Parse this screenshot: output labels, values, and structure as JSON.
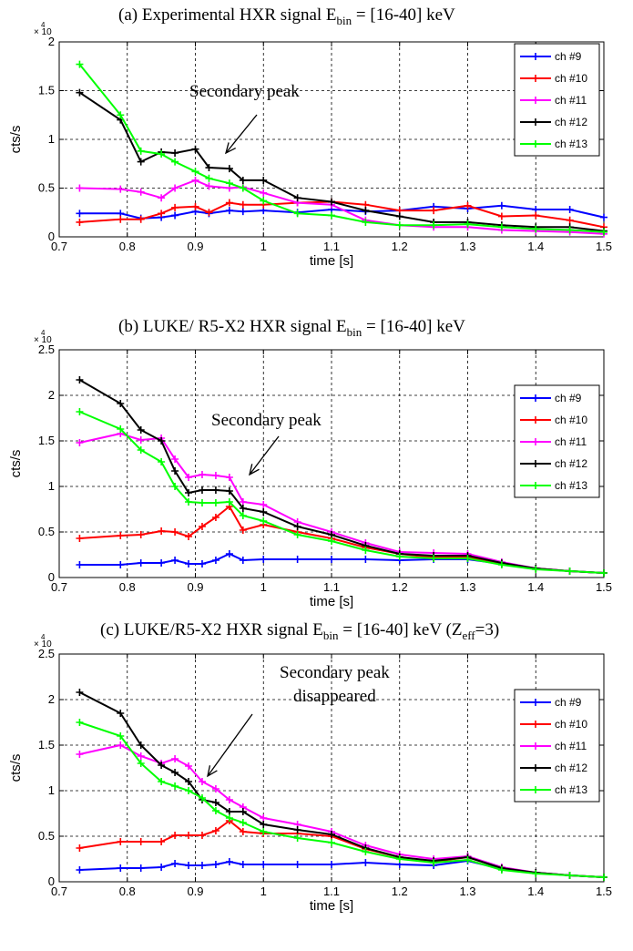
{
  "chart_data": [
    {
      "type": "line",
      "title": {
        "main": "(a) Experimental HXR signal E",
        "sub": "bin",
        "rest": " = [16-40] keV"
      },
      "xlabel": "time [s]",
      "ylabel": "cts/s",
      "multiplier": {
        "base": "× 10",
        "exp": "4"
      },
      "xlim": [
        0.7,
        1.5
      ],
      "ylim": [
        0,
        2
      ],
      "xticks": [
        "0.7",
        "0.8",
        "0.9",
        "1",
        "1.1",
        "1.2",
        "1.3",
        "1.4",
        "1.5"
      ],
      "yticks": [
        "0",
        "0.5",
        "1",
        "1.5",
        "2"
      ],
      "grid": true,
      "legend_position": "top-right",
      "annotations": [
        "Secondary peak"
      ],
      "series": [
        {
          "name": "ch #9",
          "color": "#0000ff",
          "x": [
            0.73,
            0.79,
            0.82,
            0.85,
            0.87,
            0.9,
            0.92,
            0.95,
            0.97,
            1.0,
            1.05,
            1.1,
            1.15,
            1.2,
            1.25,
            1.3,
            1.35,
            1.4,
            1.45,
            1.5
          ],
          "y": [
            0.24,
            0.24,
            0.19,
            0.2,
            0.22,
            0.26,
            0.24,
            0.27,
            0.26,
            0.27,
            0.25,
            0.28,
            0.26,
            0.27,
            0.31,
            0.29,
            0.32,
            0.28,
            0.28,
            0.2
          ]
        },
        {
          "name": "ch #10",
          "color": "#ff0000",
          "x": [
            0.73,
            0.79,
            0.82,
            0.85,
            0.87,
            0.9,
            0.92,
            0.95,
            0.97,
            1.0,
            1.05,
            1.1,
            1.15,
            1.2,
            1.25,
            1.3,
            1.35,
            1.4,
            1.45,
            1.5
          ],
          "y": [
            0.15,
            0.18,
            0.18,
            0.24,
            0.3,
            0.31,
            0.25,
            0.35,
            0.33,
            0.33,
            0.35,
            0.36,
            0.33,
            0.27,
            0.27,
            0.32,
            0.21,
            0.22,
            0.17,
            0.1
          ]
        },
        {
          "name": "ch #11",
          "color": "#ff00ff",
          "x": [
            0.73,
            0.79,
            0.82,
            0.85,
            0.87,
            0.9,
            0.92,
            0.95,
            0.97,
            1.0,
            1.05,
            1.1,
            1.15,
            1.2,
            1.25,
            1.3,
            1.35,
            1.4,
            1.45,
            1.5
          ],
          "y": [
            0.5,
            0.49,
            0.46,
            0.4,
            0.5,
            0.58,
            0.52,
            0.5,
            0.51,
            0.45,
            0.35,
            0.33,
            0.17,
            0.12,
            0.1,
            0.1,
            0.07,
            0.06,
            0.05,
            0.03
          ]
        },
        {
          "name": "ch #12",
          "color": "#000000",
          "x": [
            0.73,
            0.79,
            0.82,
            0.85,
            0.87,
            0.9,
            0.92,
            0.95,
            0.97,
            1.0,
            1.05,
            1.1,
            1.15,
            1.2,
            1.25,
            1.3,
            1.35,
            1.4,
            1.45,
            1.5
          ],
          "y": [
            1.48,
            1.2,
            0.77,
            0.87,
            0.86,
            0.9,
            0.71,
            0.7,
            0.58,
            0.58,
            0.4,
            0.36,
            0.27,
            0.21,
            0.15,
            0.15,
            0.12,
            0.1,
            0.1,
            0.06
          ]
        },
        {
          "name": "ch #13",
          "color": "#00ff00",
          "x": [
            0.73,
            0.79,
            0.82,
            0.85,
            0.87,
            0.9,
            0.92,
            0.95,
            0.97,
            1.0,
            1.05,
            1.1,
            1.15,
            1.2,
            1.25,
            1.3,
            1.35,
            1.4,
            1.45,
            1.5
          ],
          "y": [
            1.77,
            1.25,
            0.88,
            0.85,
            0.77,
            0.67,
            0.6,
            0.55,
            0.5,
            0.37,
            0.24,
            0.22,
            0.15,
            0.12,
            0.12,
            0.13,
            0.1,
            0.08,
            0.07,
            0.05
          ]
        }
      ]
    },
    {
      "type": "line",
      "title": {
        "main": "(b) LUKE/ R5-X2 HXR signal E",
        "sub": "bin",
        "rest": " = [16-40] keV"
      },
      "xlabel": "time [s]",
      "ylabel": "cts/s",
      "multiplier": {
        "base": "× 10",
        "exp": "4"
      },
      "xlim": [
        0.7,
        1.5
      ],
      "ylim": [
        0,
        2.5
      ],
      "xticks": [
        "0.7",
        "0.8",
        "0.9",
        "1",
        "1.1",
        "1.2",
        "1.3",
        "1.4",
        "1.5"
      ],
      "yticks": [
        "0",
        "0.5",
        "1",
        "1.5",
        "2",
        "2.5"
      ],
      "grid": true,
      "legend_position": "top-right",
      "annotations": [
        "Secondary peak"
      ],
      "series": [
        {
          "name": "ch #9",
          "color": "#0000ff",
          "x": [
            0.73,
            0.79,
            0.82,
            0.85,
            0.87,
            0.89,
            0.91,
            0.93,
            0.95,
            0.97,
            1.0,
            1.05,
            1.1,
            1.15,
            1.2,
            1.25,
            1.3,
            1.35,
            1.4,
            1.45,
            1.5
          ],
          "y": [
            0.14,
            0.14,
            0.16,
            0.16,
            0.19,
            0.15,
            0.15,
            0.19,
            0.26,
            0.19,
            0.2,
            0.2,
            0.2,
            0.2,
            0.19,
            0.2,
            0.2,
            0.15,
            0.1,
            0.07,
            0.05
          ]
        },
        {
          "name": "ch #10",
          "color": "#ff0000",
          "x": [
            0.73,
            0.79,
            0.82,
            0.85,
            0.87,
            0.89,
            0.91,
            0.93,
            0.95,
            0.97,
            1.0,
            1.05,
            1.1,
            1.15,
            1.2,
            1.25,
            1.3,
            1.35,
            1.4,
            1.45,
            1.5
          ],
          "y": [
            0.43,
            0.46,
            0.47,
            0.51,
            0.5,
            0.45,
            0.56,
            0.66,
            0.78,
            0.52,
            0.58,
            0.5,
            0.43,
            0.33,
            0.26,
            0.22,
            0.22,
            0.15,
            0.1,
            0.07,
            0.05
          ]
        },
        {
          "name": "ch #11",
          "color": "#ff00ff",
          "x": [
            0.73,
            0.79,
            0.82,
            0.85,
            0.87,
            0.89,
            0.91,
            0.93,
            0.95,
            0.97,
            1.0,
            1.05,
            1.1,
            1.15,
            1.2,
            1.25,
            1.3,
            1.35,
            1.4,
            1.45,
            1.5
          ],
          "y": [
            1.48,
            1.58,
            1.51,
            1.53,
            1.3,
            1.1,
            1.13,
            1.12,
            1.1,
            0.83,
            0.8,
            0.61,
            0.5,
            0.38,
            0.28,
            0.27,
            0.26,
            0.17,
            0.1,
            0.07,
            0.05
          ]
        },
        {
          "name": "ch #12",
          "color": "#000000",
          "x": [
            0.73,
            0.79,
            0.82,
            0.85,
            0.87,
            0.89,
            0.91,
            0.93,
            0.95,
            0.97,
            1.0,
            1.05,
            1.1,
            1.15,
            1.2,
            1.25,
            1.3,
            1.35,
            1.4,
            1.45,
            1.5
          ],
          "y": [
            2.17,
            1.91,
            1.62,
            1.5,
            1.17,
            0.93,
            0.96,
            0.96,
            0.95,
            0.76,
            0.72,
            0.56,
            0.47,
            0.35,
            0.26,
            0.24,
            0.24,
            0.16,
            0.1,
            0.07,
            0.05
          ]
        },
        {
          "name": "ch #13",
          "color": "#00ff00",
          "x": [
            0.73,
            0.79,
            0.82,
            0.85,
            0.87,
            0.89,
            0.91,
            0.93,
            0.95,
            0.97,
            1.0,
            1.05,
            1.1,
            1.15,
            1.2,
            1.25,
            1.3,
            1.35,
            1.4,
            1.45,
            1.5
          ],
          "y": [
            1.82,
            1.63,
            1.4,
            1.27,
            1.0,
            0.83,
            0.82,
            0.82,
            0.83,
            0.68,
            0.62,
            0.47,
            0.4,
            0.3,
            0.23,
            0.21,
            0.21,
            0.14,
            0.09,
            0.07,
            0.05
          ]
        }
      ]
    },
    {
      "type": "line",
      "title": {
        "main": "(c) LUKE/R5-X2 HXR signal E",
        "sub": "bin",
        "rest": " = [16-40] keV (Z",
        "sub2": "eff",
        "rest2": "=3)"
      },
      "xlabel": "time [s]",
      "ylabel": "cts/s",
      "multiplier": {
        "base": "× 10",
        "exp": "4"
      },
      "xlim": [
        0.7,
        1.5
      ],
      "ylim": [
        0,
        2.5
      ],
      "xticks": [
        "0.7",
        "0.8",
        "0.9",
        "1",
        "1.1",
        "1.2",
        "1.3",
        "1.4",
        "1.5"
      ],
      "yticks": [
        "0",
        "0.5",
        "1",
        "1.5",
        "2",
        "2.5"
      ],
      "grid": true,
      "legend_position": "top-right",
      "annotations": [
        "Secondary peak",
        "disappeared"
      ],
      "series": [
        {
          "name": "ch #9",
          "color": "#0000ff",
          "x": [
            0.73,
            0.79,
            0.82,
            0.85,
            0.87,
            0.89,
            0.91,
            0.93,
            0.95,
            0.97,
            1.0,
            1.05,
            1.1,
            1.15,
            1.2,
            1.25,
            1.3,
            1.35,
            1.4,
            1.45,
            1.5
          ],
          "y": [
            0.13,
            0.15,
            0.15,
            0.16,
            0.2,
            0.18,
            0.18,
            0.19,
            0.22,
            0.19,
            0.19,
            0.19,
            0.19,
            0.21,
            0.19,
            0.18,
            0.23,
            0.14,
            0.1,
            0.07,
            0.05
          ]
        },
        {
          "name": "ch #10",
          "color": "#ff0000",
          "x": [
            0.73,
            0.79,
            0.82,
            0.85,
            0.87,
            0.89,
            0.91,
            0.93,
            0.95,
            0.97,
            1.0,
            1.05,
            1.1,
            1.15,
            1.2,
            1.25,
            1.3,
            1.35,
            1.4,
            1.45,
            1.5
          ],
          "y": [
            0.37,
            0.44,
            0.44,
            0.44,
            0.51,
            0.51,
            0.51,
            0.56,
            0.67,
            0.55,
            0.53,
            0.53,
            0.5,
            0.36,
            0.27,
            0.22,
            0.27,
            0.15,
            0.1,
            0.07,
            0.05
          ]
        },
        {
          "name": "ch #11",
          "color": "#ff00ff",
          "x": [
            0.73,
            0.79,
            0.82,
            0.85,
            0.87,
            0.89,
            0.91,
            0.93,
            0.95,
            0.97,
            1.0,
            1.05,
            1.1,
            1.15,
            1.2,
            1.25,
            1.3,
            1.35,
            1.4,
            1.45,
            1.5
          ],
          "y": [
            1.4,
            1.5,
            1.38,
            1.3,
            1.35,
            1.27,
            1.1,
            1.02,
            0.9,
            0.82,
            0.7,
            0.63,
            0.55,
            0.4,
            0.3,
            0.25,
            0.28,
            0.16,
            0.1,
            0.07,
            0.05
          ]
        },
        {
          "name": "ch #12",
          "color": "#000000",
          "x": [
            0.73,
            0.79,
            0.82,
            0.85,
            0.87,
            0.89,
            0.91,
            0.93,
            0.95,
            0.97,
            1.0,
            1.05,
            1.1,
            1.15,
            1.2,
            1.25,
            1.3,
            1.35,
            1.4,
            1.45,
            1.5
          ],
          "y": [
            2.08,
            1.85,
            1.5,
            1.28,
            1.2,
            1.1,
            0.9,
            0.87,
            0.77,
            0.77,
            0.63,
            0.57,
            0.52,
            0.37,
            0.27,
            0.23,
            0.27,
            0.15,
            0.1,
            0.07,
            0.05
          ]
        },
        {
          "name": "ch #13",
          "color": "#00ff00",
          "x": [
            0.73,
            0.79,
            0.82,
            0.85,
            0.87,
            0.89,
            0.91,
            0.93,
            0.95,
            0.97,
            1.0,
            1.05,
            1.1,
            1.15,
            1.2,
            1.25,
            1.3,
            1.35,
            1.4,
            1.45,
            1.5
          ],
          "y": [
            1.75,
            1.6,
            1.3,
            1.1,
            1.05,
            1.0,
            0.92,
            0.78,
            0.7,
            0.65,
            0.55,
            0.48,
            0.43,
            0.33,
            0.25,
            0.21,
            0.24,
            0.13,
            0.09,
            0.07,
            0.05
          ]
        }
      ]
    }
  ]
}
